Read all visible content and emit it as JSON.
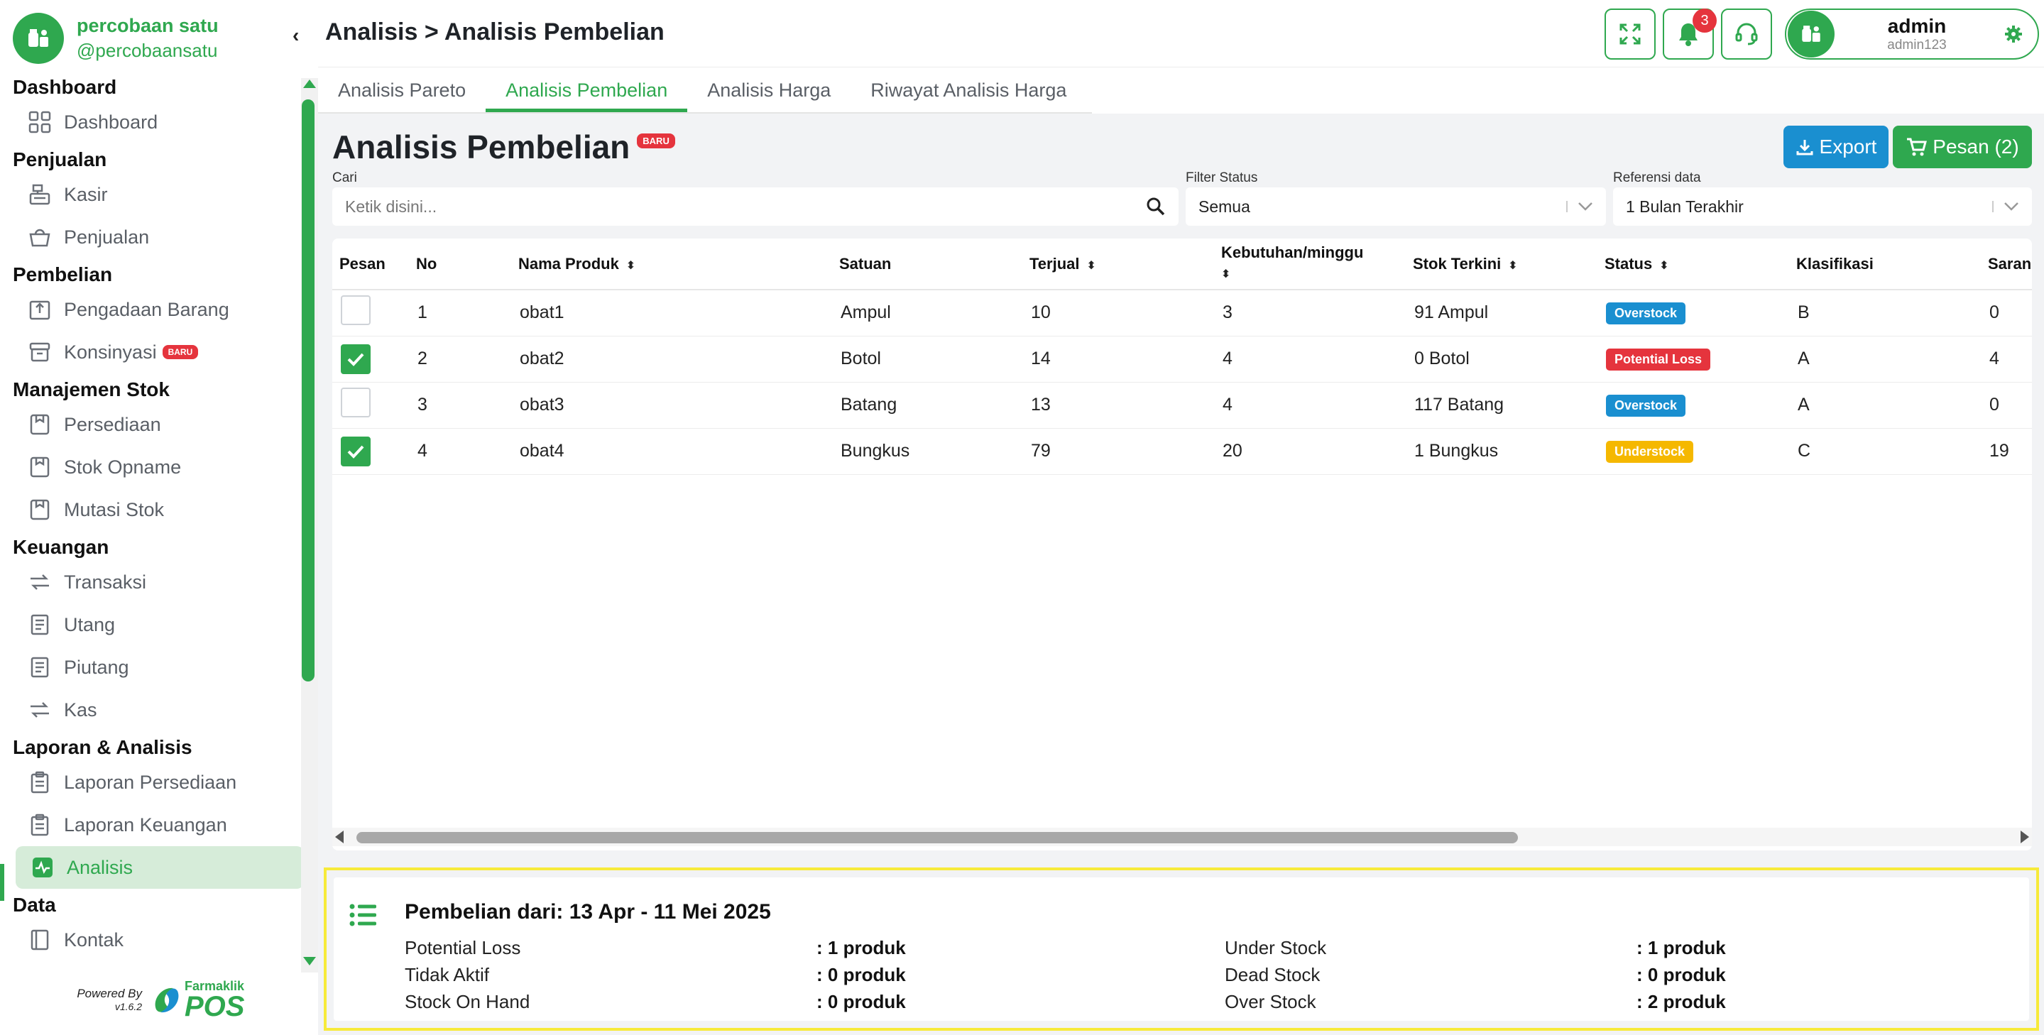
{
  "brand": {
    "name": "percobaan satu",
    "handle": "@percobaansatu"
  },
  "header": {
    "breadcrumb": "Analisis > Analisis Pembelian",
    "notification_count": "3",
    "user": {
      "name": "admin",
      "username": "admin123"
    }
  },
  "sidebar": {
    "sections": [
      {
        "title": "Dashboard",
        "items": [
          {
            "label": "Dashboard",
            "icon": "grid-icon"
          }
        ]
      },
      {
        "title": "Penjualan",
        "items": [
          {
            "label": "Kasir",
            "icon": "cash-register-icon"
          },
          {
            "label": "Penjualan",
            "icon": "basket-icon"
          }
        ]
      },
      {
        "title": "Pembelian",
        "items": [
          {
            "label": "Pengadaan Barang",
            "icon": "procurement-icon"
          },
          {
            "label": "Konsinyasi",
            "icon": "archive-box-icon",
            "badge": "BARU"
          }
        ]
      },
      {
        "title": "Manajemen Stok",
        "items": [
          {
            "label": "Persediaan",
            "icon": "inventory-icon"
          },
          {
            "label": "Stok Opname",
            "icon": "stock-opname-icon"
          },
          {
            "label": "Mutasi Stok",
            "icon": "stock-mutation-icon"
          }
        ]
      },
      {
        "title": "Keuangan",
        "items": [
          {
            "label": "Transaksi",
            "icon": "transfer-icon"
          },
          {
            "label": "Utang",
            "icon": "receipt-icon"
          },
          {
            "label": "Piutang",
            "icon": "receipt-icon"
          },
          {
            "label": "Kas",
            "icon": "transfer-icon"
          }
        ]
      },
      {
        "title": "Laporan & Analisis",
        "items": [
          {
            "label": "Laporan Persediaan",
            "icon": "clipboard-icon"
          },
          {
            "label": "Laporan Keuangan",
            "icon": "clipboard-icon"
          },
          {
            "label": "Analisis",
            "icon": "activity-chart-icon",
            "active": true
          }
        ]
      },
      {
        "title": "Data",
        "items": [
          {
            "label": "Kontak",
            "icon": "contact-book-icon"
          }
        ]
      }
    ],
    "powered_by": "Powered By",
    "version": "v1.6.2",
    "product_brand_top": "Farmaklik",
    "product_brand_bottom": "POS"
  },
  "tabs": [
    {
      "label": "Analisis Pareto",
      "active": false
    },
    {
      "label": "Analisis Pembelian",
      "active": true
    },
    {
      "label": "Analisis Harga",
      "active": false
    },
    {
      "label": "Riwayat Analisis Harga",
      "active": false
    }
  ],
  "page": {
    "title": "Analisis Pembelian",
    "title_badge": "BARU",
    "export_label": "Export",
    "pesan_label": "Pesan (2)"
  },
  "filters": {
    "search_label": "Cari",
    "search_placeholder": "Ketik disini...",
    "status_label": "Filter Status",
    "status_value": "Semua",
    "reference_label": "Referensi data",
    "reference_value": "1 Bulan Terakhir"
  },
  "table": {
    "columns": [
      "Pesan",
      "No",
      "Nama Produk",
      "Satuan",
      "Terjual",
      "Kebutuhan/minggu",
      "Stok Terkini",
      "Status",
      "Klasifikasi",
      "Saran"
    ],
    "rows": [
      {
        "checked": false,
        "no": "1",
        "nama": "obat1",
        "satuan": "Ampul",
        "terjual": "10",
        "kebutuhan": "3",
        "stok": "91 Ampul",
        "status": "Overstock",
        "status_color": "#1a8fd0",
        "klasifikasi": "B",
        "saran": "0"
      },
      {
        "checked": true,
        "no": "2",
        "nama": "obat2",
        "satuan": "Botol",
        "terjual": "14",
        "kebutuhan": "4",
        "stok": "0 Botol",
        "status": "Potential Loss",
        "status_color": "#e5343d",
        "klasifikasi": "A",
        "saran": "4"
      },
      {
        "checked": false,
        "no": "3",
        "nama": "obat3",
        "satuan": "Batang",
        "terjual": "13",
        "kebutuhan": "4",
        "stok": "117 Batang",
        "status": "Overstock",
        "status_color": "#1a8fd0",
        "klasifikasi": "A",
        "saran": "0"
      },
      {
        "checked": true,
        "no": "4",
        "nama": "obat4",
        "satuan": "Bungkus",
        "terjual": "79",
        "kebutuhan": "20",
        "stok": "1 Bungkus",
        "status": "Understock",
        "status_color": "#f5b800",
        "klasifikasi": "C",
        "saran": "19"
      }
    ]
  },
  "summary": {
    "title": "Pembelian dari: 13 Apr - 11 Mei 2025",
    "left": [
      {
        "label": "Potential Loss",
        "value": ": 1 produk"
      },
      {
        "label": "Tidak Aktif",
        "value": ": 0 produk"
      },
      {
        "label": "Stock On Hand",
        "value": ": 0 produk"
      }
    ],
    "right": [
      {
        "label": "Under Stock",
        "value": ": 1 produk"
      },
      {
        "label": "Dead Stock",
        "value": ": 0 produk"
      },
      {
        "label": "Over Stock",
        "value": ": 2 produk"
      }
    ]
  },
  "colors": {
    "primary": "#2fa84f",
    "export": "#1a8fd0",
    "danger": "#e5343d",
    "warning": "#f5b800",
    "highlight": "#f7ea3a"
  }
}
